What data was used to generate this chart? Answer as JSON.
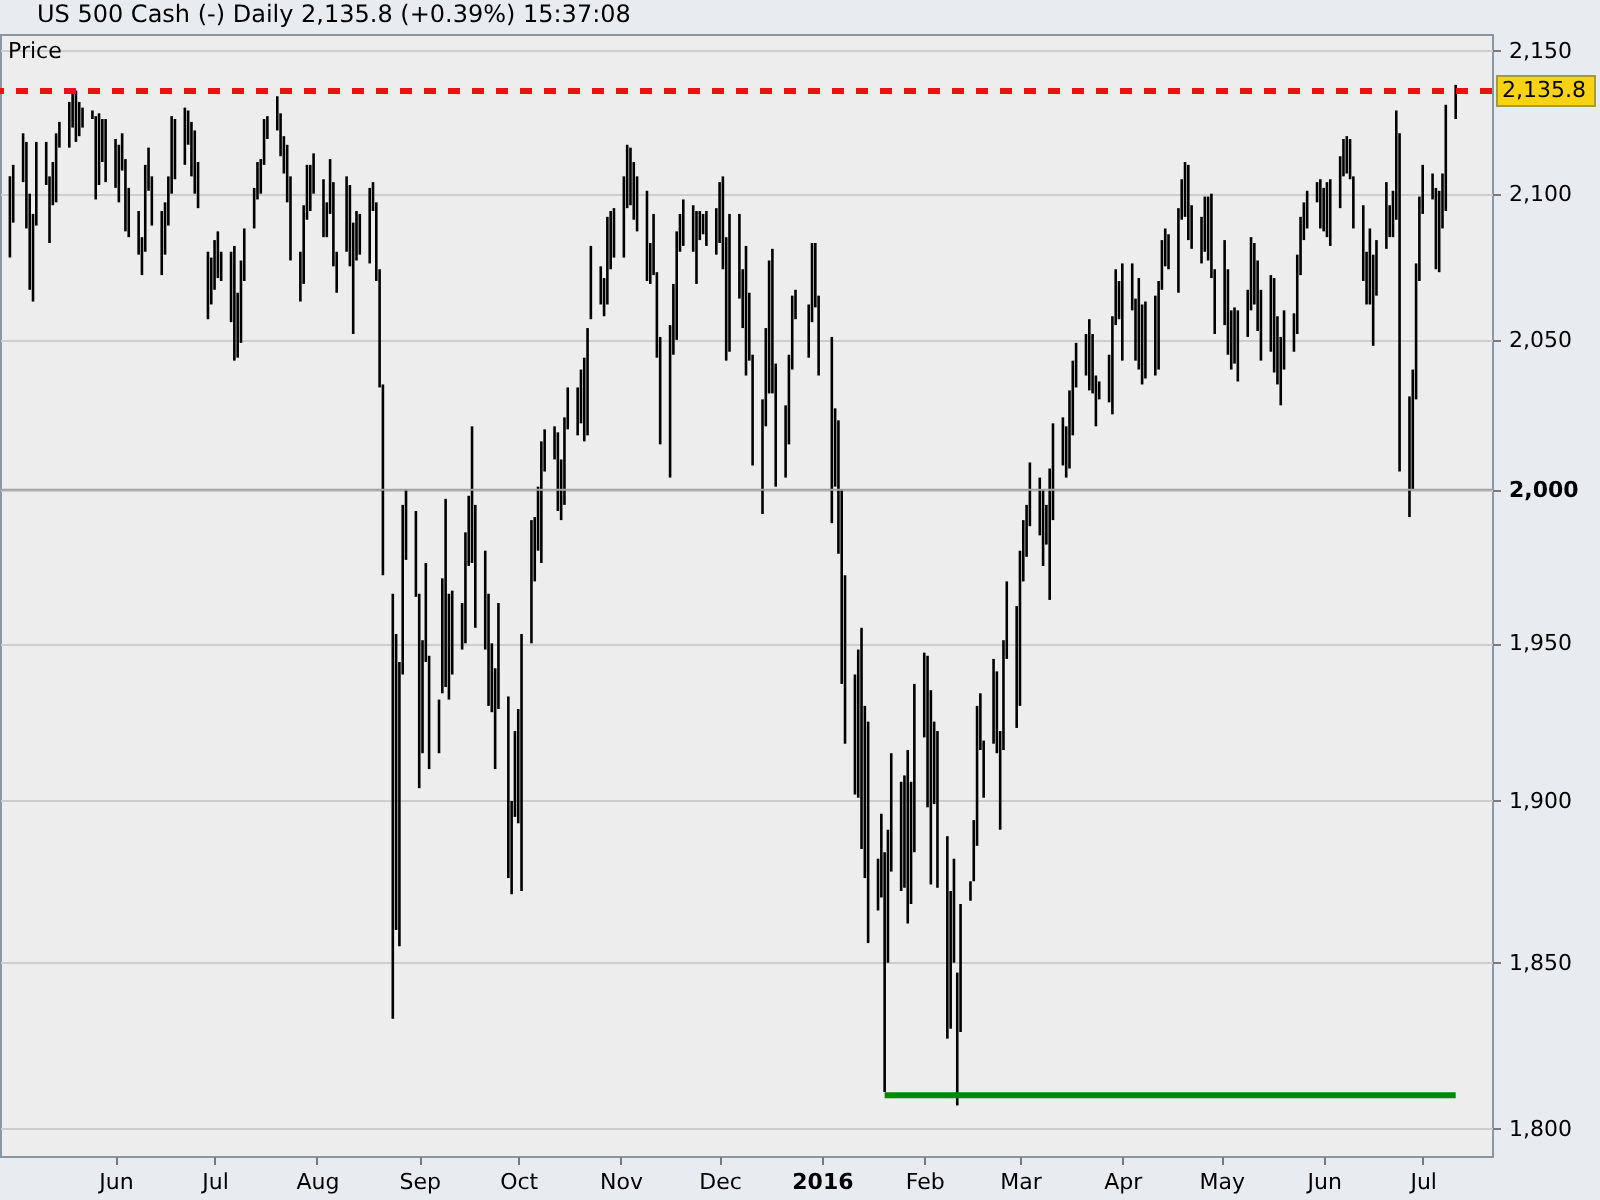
{
  "chart_data": {
    "type": "bar",
    "title": "US 500 Cash (-) Daily 2,135.8 (+0.39%) 15:37:08",
    "ylabel": "Price",
    "log": true,
    "grid": "y",
    "xlim": [
      "2015-04-27",
      "2016-07-22"
    ],
    "xticks": [
      {
        "value": "2015-06-01",
        "label": "Jun"
      },
      {
        "value": "2015-07-01",
        "label": "Jul"
      },
      {
        "value": "2015-08-01",
        "label": "Aug"
      },
      {
        "value": "2015-09-01",
        "label": "Sep"
      },
      {
        "value": "2015-10-01",
        "label": "Oct"
      },
      {
        "value": "2015-11-01",
        "label": "Nov"
      },
      {
        "value": "2015-12-01",
        "label": "Dec"
      },
      {
        "value": "2016-01-01",
        "label": "2016"
      },
      {
        "value": "2016-02-01",
        "label": "Feb"
      },
      {
        "value": "2016-03-01",
        "label": "Mar"
      },
      {
        "value": "2016-04-01",
        "label": "Apr"
      },
      {
        "value": "2016-05-01",
        "label": "May"
      },
      {
        "value": "2016-06-01",
        "label": "Jun"
      },
      {
        "value": "2016-07-01",
        "label": "Jul"
      }
    ],
    "ylim": [
      1792,
      2156
    ],
    "yticks": [
      {
        "value": 1800,
        "label": "1,800"
      },
      {
        "value": 1850,
        "label": "1,850"
      },
      {
        "value": 1900,
        "label": "1,900"
      },
      {
        "value": 1950,
        "label": "1,950"
      },
      {
        "value": 2000,
        "label": "2,000"
      },
      {
        "value": 2050,
        "label": "2,050"
      },
      {
        "value": 2100,
        "label": "2,100"
      },
      {
        "value": 2150,
        "label": "2,150"
      }
    ],
    "x": [
      "2015-04-30",
      "2015-05-01",
      "2015-05-04",
      "2015-05-05",
      "2015-05-06",
      "2015-05-07",
      "2015-05-08",
      "2015-05-11",
      "2015-05-12",
      "2015-05-13",
      "2015-05-14",
      "2015-05-15",
      "2015-05-18",
      "2015-05-19",
      "2015-05-20",
      "2015-05-21",
      "2015-05-22",
      "2015-05-25",
      "2015-05-26",
      "2015-05-27",
      "2015-05-28",
      "2015-05-29",
      "2015-06-01",
      "2015-06-02",
      "2015-06-03",
      "2015-06-04",
      "2015-06-05",
      "2015-06-08",
      "2015-06-09",
      "2015-06-10",
      "2015-06-11",
      "2015-06-12",
      "2015-06-15",
      "2015-06-16",
      "2015-06-17",
      "2015-06-18",
      "2015-06-19",
      "2015-06-22",
      "2015-06-23",
      "2015-06-24",
      "2015-06-25",
      "2015-06-26",
      "2015-06-29",
      "2015-06-30",
      "2015-07-01",
      "2015-07-02",
      "2015-07-03",
      "2015-07-06",
      "2015-07-07",
      "2015-07-08",
      "2015-07-09",
      "2015-07-10",
      "2015-07-13",
      "2015-07-14",
      "2015-07-15",
      "2015-07-16",
      "2015-07-17",
      "2015-07-20",
      "2015-07-21",
      "2015-07-22",
      "2015-07-23",
      "2015-07-24",
      "2015-07-27",
      "2015-07-28",
      "2015-07-29",
      "2015-07-30",
      "2015-07-31",
      "2015-08-03",
      "2015-08-04",
      "2015-08-05",
      "2015-08-06",
      "2015-08-07",
      "2015-08-10",
      "2015-08-11",
      "2015-08-12",
      "2015-08-13",
      "2015-08-14",
      "2015-08-17",
      "2015-08-18",
      "2015-08-19",
      "2015-08-20",
      "2015-08-21",
      "2015-08-24",
      "2015-08-25",
      "2015-08-26",
      "2015-08-27",
      "2015-08-28",
      "2015-08-31",
      "2015-09-01",
      "2015-09-02",
      "2015-09-03",
      "2015-09-04",
      "2015-09-07",
      "2015-09-08",
      "2015-09-09",
      "2015-09-10",
      "2015-09-11",
      "2015-09-14",
      "2015-09-15",
      "2015-09-16",
      "2015-09-17",
      "2015-09-18",
      "2015-09-21",
      "2015-09-22",
      "2015-09-23",
      "2015-09-24",
      "2015-09-25",
      "2015-09-28",
      "2015-09-29",
      "2015-09-30",
      "2015-10-01",
      "2015-10-02",
      "2015-10-05",
      "2015-10-06",
      "2015-10-07",
      "2015-10-08",
      "2015-10-09",
      "2015-10-12",
      "2015-10-13",
      "2015-10-14",
      "2015-10-15",
      "2015-10-16",
      "2015-10-19",
      "2015-10-20",
      "2015-10-21",
      "2015-10-22",
      "2015-10-23",
      "2015-10-26",
      "2015-10-27",
      "2015-10-28",
      "2015-10-29",
      "2015-10-30",
      "2015-11-02",
      "2015-11-03",
      "2015-11-04",
      "2015-11-05",
      "2015-11-06",
      "2015-11-09",
      "2015-11-10",
      "2015-11-11",
      "2015-11-12",
      "2015-11-13",
      "2015-11-16",
      "2015-11-17",
      "2015-11-18",
      "2015-11-19",
      "2015-11-20",
      "2015-11-23",
      "2015-11-24",
      "2015-11-25",
      "2015-11-26",
      "2015-11-27",
      "2015-11-30",
      "2015-12-01",
      "2015-12-02",
      "2015-12-03",
      "2015-12-04",
      "2015-12-07",
      "2015-12-08",
      "2015-12-09",
      "2015-12-10",
      "2015-12-11",
      "2015-12-14",
      "2015-12-15",
      "2015-12-16",
      "2015-12-17",
      "2015-12-18",
      "2015-12-21",
      "2015-12-22",
      "2015-12-23",
      "2015-12-24",
      "2015-12-28",
      "2015-12-29",
      "2015-12-30",
      "2015-12-31",
      "2016-01-04",
      "2016-01-05",
      "2016-01-06",
      "2016-01-07",
      "2016-01-08",
      "2016-01-11",
      "2016-01-12",
      "2016-01-13",
      "2016-01-14",
      "2016-01-15",
      "2016-01-18",
      "2016-01-19",
      "2016-01-20",
      "2016-01-21",
      "2016-01-22",
      "2016-01-25",
      "2016-01-26",
      "2016-01-27",
      "2016-01-28",
      "2016-01-29",
      "2016-02-01",
      "2016-02-02",
      "2016-02-03",
      "2016-02-04",
      "2016-02-05",
      "2016-02-08",
      "2016-02-09",
      "2016-02-10",
      "2016-02-11",
      "2016-02-12",
      "2016-02-15",
      "2016-02-16",
      "2016-02-17",
      "2016-02-18",
      "2016-02-19",
      "2016-02-22",
      "2016-02-23",
      "2016-02-24",
      "2016-02-25",
      "2016-02-26",
      "2016-02-29",
      "2016-03-01",
      "2016-03-02",
      "2016-03-03",
      "2016-03-04",
      "2016-03-07",
      "2016-03-08",
      "2016-03-09",
      "2016-03-10",
      "2016-03-11",
      "2016-03-14",
      "2016-03-15",
      "2016-03-16",
      "2016-03-17",
      "2016-03-18",
      "2016-03-21",
      "2016-03-22",
      "2016-03-23",
      "2016-03-24",
      "2016-03-25",
      "2016-03-28",
      "2016-03-29",
      "2016-03-30",
      "2016-03-31",
      "2016-04-01",
      "2016-04-04",
      "2016-04-05",
      "2016-04-06",
      "2016-04-07",
      "2016-04-08",
      "2016-04-11",
      "2016-04-12",
      "2016-04-13",
      "2016-04-14",
      "2016-04-15",
      "2016-04-18",
      "2016-04-19",
      "2016-04-20",
      "2016-04-21",
      "2016-04-22",
      "2016-04-25",
      "2016-04-26",
      "2016-04-27",
      "2016-04-28",
      "2016-04-29",
      "2016-05-02",
      "2016-05-03",
      "2016-05-04",
      "2016-05-05",
      "2016-05-06",
      "2016-05-09",
      "2016-05-10",
      "2016-05-11",
      "2016-05-12",
      "2016-05-13",
      "2016-05-16",
      "2016-05-17",
      "2016-05-18",
      "2016-05-19",
      "2016-05-20",
      "2016-05-23",
      "2016-05-24",
      "2016-05-25",
      "2016-05-26",
      "2016-05-27",
      "2016-05-30",
      "2016-05-31",
      "2016-06-01",
      "2016-06-02",
      "2016-06-03",
      "2016-06-06",
      "2016-06-07",
      "2016-06-08",
      "2016-06-09",
      "2016-06-10",
      "2016-06-13",
      "2016-06-14",
      "2016-06-15",
      "2016-06-16",
      "2016-06-17",
      "2016-06-20",
      "2016-06-21",
      "2016-06-22",
      "2016-06-23",
      "2016-06-24",
      "2016-06-27",
      "2016-06-28",
      "2016-06-29",
      "2016-06-30",
      "2016-07-01",
      "2016-07-04",
      "2016-07-05",
      "2016-07-06",
      "2016-07-07",
      "2016-07-08",
      "2016-07-11"
    ],
    "series": [
      {
        "color": "#000000",
        "base": [
          2078,
          2090,
          2104,
          2088,
          2067,
          2063,
          2089,
          2103,
          2083,
          2096,
          2097,
          2116,
          2116,
          2123,
          2118,
          2120,
          2123,
          2126,
          2098,
          2103,
          2111,
          2104,
          2102,
          2097,
          2108,
          2087,
          2085,
          2079,
          2072,
          2080,
          2101,
          2089,
          2072,
          2079,
          2089,
          2100,
          2105,
          2110,
          2117,
          2106,
          2100,
          2095,
          2057,
          2062,
          2067,
          2071,
          2070,
          2056,
          2043,
          2044,
          2049,
          2070,
          2088,
          2098,
          2100,
          2110,
          2119,
          2122,
          2113,
          2107,
          2097,
          2077,
          2063,
          2069,
          2091,
          2094,
          2100,
          2085,
          2085,
          2093,
          2075,
          2066,
          2080,
          2075,
          2052,
          2077,
          2079,
          2076,
          2094,
          2070,
          2034,
          1972,
          1833,
          1860,
          1855,
          1940,
          1977,
          1965,
          1904,
          1915,
          1944,
          1910,
          1915,
          1934,
          1936,
          1932,
          1940,
          1948,
          1950,
          1975,
          1976,
          1955,
          1948,
          1930,
          1928,
          1910,
          1929,
          1876,
          1871,
          1895,
          1893,
          1872,
          1950,
          1970,
          1980,
          1976,
          2006,
          2010,
          1993,
          1990,
          1995,
          2020,
          2018,
          2022,
          2016,
          2018,
          2057,
          2062,
          2058,
          2062,
          2074,
          2078,
          2078,
          2095,
          2096,
          2091,
          2087,
          2070,
          2069,
          2072,
          2044,
          2015,
          2004,
          2045,
          2050,
          2080,
          2082,
          2080,
          2069,
          2084,
          2086,
          2082,
          2079,
          2083,
          2074,
          2043,
          2046,
          2064,
          2054,
          2038,
          2043,
          2008,
          1992,
          2021,
          2032,
          2032,
          2001,
          2004,
          2015,
          2040,
          2057,
          2044,
          2056,
          2061,
          2038,
          1989,
          2001,
          1979,
          1937,
          1918,
          1902,
          1901,
          1885,
          1876,
          1856,
          1866,
          1870,
          1811,
          1850,
          1878,
          1872,
          1873,
          1862,
          1868,
          1884,
          1920,
          1898,
          1874,
          1899,
          1873,
          1827,
          1830,
          1850,
          1807,
          1829,
          1869,
          1875,
          1886,
          1916,
          1901,
          1918,
          1915,
          1891,
          1916,
          1945,
          1923,
          1930,
          1970,
          1978,
          1988,
          1985,
          1975,
          1982,
          1964,
          1990,
          2008,
          2004,
          2007,
          2018,
          2034,
          2038,
          2033,
          2032,
          2021,
          2030,
          2029,
          2025,
          2055,
          2057,
          2043,
          2060,
          2043,
          2040,
          2035,
          2037,
          2038,
          2040,
          2067,
          2075,
          2074,
          2066,
          2091,
          2092,
          2084,
          2081,
          2076,
          2080,
          2077,
          2071,
          2052,
          2055,
          2045,
          2040,
          2042,
          2036,
          2051,
          2060,
          2062,
          2053,
          2043,
          2046,
          2039,
          2035,
          2028,
          2040,
          2046,
          2052,
          2072,
          2084,
          2088,
          2097,
          2088,
          2087,
          2085,
          2082,
          2095,
          2106,
          2107,
          2105,
          2088,
          2070,
          2062,
          2062,
          2048,
          2065,
          2081,
          2085,
          2085,
          2091,
          2006,
          1991,
          2000,
          2030,
          2070,
          2093,
          2098,
          2074,
          2073,
          2088,
          2094,
          2126
        ],
        "values": [
          28,
          20,
          17,
          30,
          33,
          30,
          29,
          15,
          23,
          15,
          24,
          9,
          16,
          13,
          18,
          12,
          7,
          3,
          29,
          25,
          15,
          22,
          17,
          20,
          13,
          25,
          17,
          15,
          13,
          30,
          15,
          17,
          22,
          18,
          17,
          27,
          21,
          20,
          12,
          19,
          22,
          16,
          23,
          16,
          17,
          16,
          10,
          24,
          39,
          22,
          28,
          18,
          14,
          13,
          12,
          16,
          8,
          12,
          15,
          13,
          20,
          29,
          17,
          27,
          19,
          16,
          14,
          20,
          12,
          19,
          29,
          14,
          26,
          28,
          38,
          17,
          14,
          26,
          10,
          27,
          40,
          63,
          133,
          93,
          89,
          55,
          23,
          28,
          62,
          36,
          32,
          36,
          17,
          37,
          61,
          34,
          27,
          15,
          36,
          23,
          45,
          40,
          32,
          36,
          22,
          32,
          34,
          57,
          29,
          27,
          36,
          81,
          40,
          21,
          21,
          40,
          14,
          11,
          26,
          20,
          29,
          14,
          16,
          18,
          28,
          36,
          25,
          13,
          13,
          30,
          20,
          17,
          28,
          22,
          20,
          20,
          19,
          31,
          14,
          21,
          29,
          36,
          51,
          24,
          37,
          13,
          16,
          16,
          25,
          10,
          7,
          12,
          16,
          21,
          32,
          42,
          47,
          29,
          20,
          44,
          23,
          37,
          38,
          33,
          45,
          49,
          41,
          24,
          30,
          25,
          10,
          18,
          27,
          22,
          27,
          62,
          26,
          44,
          63,
          54,
          38,
          47,
          70,
          54,
          69,
          16,
          26,
          73,
          41,
          37,
          34,
          35,
          54,
          38,
          53,
          27,
          48,
          61,
          26,
          49,
          62,
          42,
          32,
          40,
          39,
          6,
          19,
          44,
          18,
          18,
          27,
          26,
          31,
          35,
          25,
          39,
          50,
          20,
          17,
          21,
          19,
          25,
          13,
          43,
          32,
          16,
          17,
          26,
          25,
          15,
          14,
          24,
          20,
          17,
          6,
          16,
          33,
          19,
          13,
          33,
          16,
          21,
          31,
          27,
          26,
          27,
          30,
          17,
          13,
          12,
          29,
          14,
          19,
          26,
          15,
          16,
          19,
          22,
          29,
          22,
          29,
          29,
          20,
          19,
          24,
          16,
          25,
          21,
          24,
          24,
          26,
          32,
          23,
          23,
          20,
          13,
          27,
          20,
          13,
          13,
          7,
          17,
          15,
          19,
          23,
          18,
          13,
          13,
          14,
          18,
          26,
          18,
          26,
          31,
          19,
          23,
          11,
          16,
          38,
          115,
          40,
          40,
          46,
          29,
          17,
          9,
          28,
          28,
          19,
          37,
          12
        ]
      },
      {
        "type": "line",
        "color": "#008a00",
        "x": [
          "2016-01-20",
          "2016-07-11"
        ],
        "values": [
          1810,
          1810
        ]
      }
    ],
    "ref_lines": [
      {
        "axis": "y",
        "value": 2135.8,
        "label": "2,135.8",
        "color": "#ee1111",
        "line_style": "dashed"
      },
      {
        "axis": "y",
        "value": 2000,
        "color": "#a4a4a4",
        "line_style": "solid"
      }
    ]
  }
}
